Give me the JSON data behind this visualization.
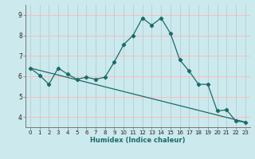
{
  "title": "",
  "xlabel": "Humidex (Indice chaleur)",
  "background_color": "#cce9ed",
  "grid_color_major": "#aacccc",
  "grid_color_minor": "#ffaaaa",
  "line_color": "#1a6b6b",
  "xlim": [
    -0.5,
    23.5
  ],
  "ylim": [
    3.5,
    9.5
  ],
  "xticks": [
    0,
    1,
    2,
    3,
    4,
    5,
    6,
    7,
    8,
    9,
    10,
    11,
    12,
    13,
    14,
    15,
    16,
    17,
    18,
    19,
    20,
    21,
    22,
    23
  ],
  "yticks": [
    4,
    5,
    6,
    7,
    8,
    9
  ],
  "series1_x": [
    0,
    1,
    2,
    3,
    4,
    5,
    6,
    7,
    8,
    9,
    10,
    11,
    12,
    13,
    14,
    15,
    16,
    17,
    18,
    19,
    20,
    21,
    22,
    23
  ],
  "series1_y": [
    6.4,
    6.05,
    5.6,
    6.4,
    6.1,
    5.85,
    5.95,
    5.85,
    5.95,
    6.7,
    7.55,
    8.0,
    8.85,
    8.5,
    8.85,
    8.1,
    6.8,
    6.25,
    5.6,
    5.6,
    4.3,
    4.35,
    3.8,
    3.75
  ],
  "series2_x": [
    0,
    23
  ],
  "series2_y": [
    6.4,
    3.75
  ],
  "marker_x": [
    0,
    1,
    2,
    3,
    4,
    5,
    6,
    7,
    8,
    9,
    10,
    11,
    12,
    13,
    14,
    15,
    16,
    17,
    18,
    19,
    20,
    21,
    22,
    23
  ],
  "marker_y": [
    6.4,
    6.05,
    5.6,
    6.4,
    6.1,
    5.85,
    5.95,
    5.85,
    5.95,
    6.7,
    7.55,
    8.0,
    8.85,
    8.5,
    8.85,
    8.1,
    6.8,
    6.25,
    5.6,
    5.6,
    4.3,
    4.35,
    3.8,
    3.75
  ],
  "xlabel_fontsize": 6,
  "tick_fontsize": 5,
  "linewidth": 0.9,
  "markersize": 2.2
}
